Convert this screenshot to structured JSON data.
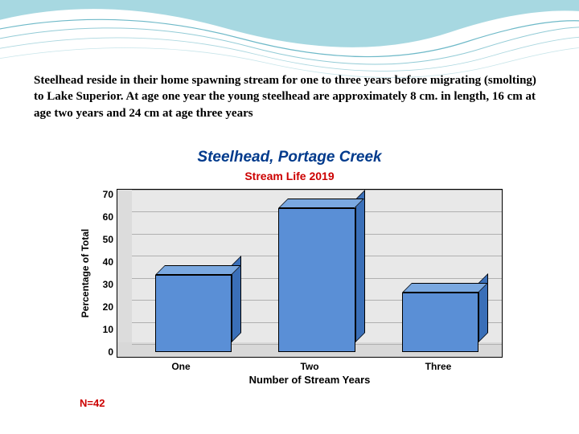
{
  "decoration": {
    "wave_colors": [
      "#5fb8c9",
      "#7ec8d6",
      "#a8dce4",
      "#c8e8ee"
    ],
    "wave_stroke": "#4aa8ba"
  },
  "body_text": "Steelhead reside in their home spawning stream for one to three years before migrating (smolting) to Lake Superior. At age one year the young steelhead are approximately 8 cm. in length, 16 cm at age two years and 24 cm at age three years",
  "chart": {
    "type": "bar",
    "title": "Steelhead, Portage Creek",
    "title_color": "#003a8c",
    "title_fontsize": 19,
    "subtitle": "Stream Life 2019",
    "subtitle_color": "#cc0000",
    "subtitle_fontsize": 14,
    "ylabel": "Percentage of Total",
    "xlabel": "Number of Stream Years",
    "categories": [
      "One",
      "Two",
      "Three"
    ],
    "values": [
      35,
      65,
      27
    ],
    "ylim": [
      0,
      70
    ],
    "ytick_step": 10,
    "yticks": [
      "70",
      "60",
      "50",
      "40",
      "30",
      "20",
      "10",
      "0"
    ],
    "bar_front_color": "#5a8fd6",
    "bar_top_color": "#7aa8e0",
    "bar_side_color": "#3a6fb8",
    "plot_bg_color": "#e8e8e8",
    "floor_color": "#d8d8d8",
    "side_wall_color": "#dcdcdc",
    "grid_color": "#b0b0b0",
    "sample_label": "N=42",
    "sample_color": "#cc0000"
  }
}
